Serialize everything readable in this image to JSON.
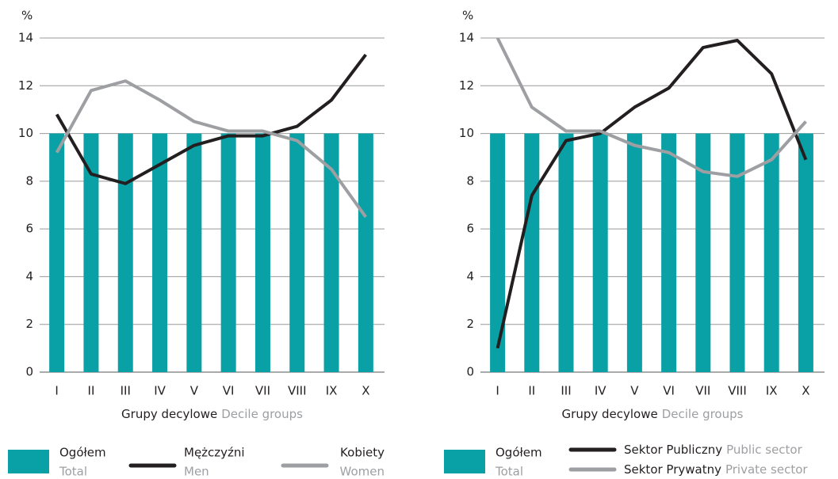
{
  "chart_data": [
    {
      "type": "combo",
      "y_unit": "%",
      "xlabel": "Grupy decylowe",
      "xlabel_en": "Decile groups",
      "categories": [
        "I",
        "II",
        "III",
        "IV",
        "V",
        "VI",
        "VII",
        "VIII",
        "IX",
        "X"
      ],
      "ylim": [
        0,
        14
      ],
      "yticks": [
        0,
        2,
        4,
        6,
        8,
        10,
        12,
        14
      ],
      "grid": true,
      "series": [
        {
          "name": "Ogółem",
          "name_en": "Total",
          "kind": "bar",
          "color": "#0aa1a6",
          "values": [
            10,
            10,
            10,
            10,
            10,
            10,
            10,
            10,
            10,
            10
          ]
        },
        {
          "name": "Mężczyźni",
          "name_en": "Men",
          "kind": "line",
          "color": "#231f20",
          "values": [
            10.8,
            8.3,
            7.9,
            8.7,
            9.5,
            9.9,
            9.9,
            10.3,
            11.4,
            13.3
          ]
        },
        {
          "name": "Kobiety",
          "name_en": "Women",
          "kind": "line",
          "color": "#9d9fa2",
          "values": [
            9.2,
            11.8,
            12.2,
            11.4,
            10.5,
            10.1,
            10.1,
            9.7,
            8.5,
            6.5
          ]
        }
      ]
    },
    {
      "type": "combo",
      "y_unit": "%",
      "xlabel": "Grupy decylowe",
      "xlabel_en": "Decile groups",
      "categories": [
        "I",
        "II",
        "III",
        "IV",
        "V",
        "VI",
        "VII",
        "VIII",
        "IX",
        "X"
      ],
      "ylim": [
        0,
        14
      ],
      "yticks": [
        0,
        2,
        4,
        6,
        8,
        10,
        12,
        14
      ],
      "grid": true,
      "series": [
        {
          "name": "Ogółem",
          "name_en": "Total",
          "kind": "bar",
          "color": "#0aa1a6",
          "values": [
            10,
            10,
            10,
            10,
            10,
            10,
            10,
            10,
            10,
            10
          ]
        },
        {
          "name": "Sektor Publiczny",
          "name_en": "Public sector",
          "kind": "line",
          "color": "#231f20",
          "values": [
            1.0,
            7.4,
            9.7,
            10.0,
            11.1,
            11.9,
            13.6,
            13.9,
            12.5,
            8.9
          ]
        },
        {
          "name": "Sektor Prywatny",
          "name_en": "Private sector",
          "kind": "line",
          "color": "#9d9fa2",
          "values": [
            14.0,
            11.1,
            10.1,
            10.1,
            9.5,
            9.2,
            8.4,
            8.2,
            8.9,
            10.5
          ]
        }
      ]
    }
  ]
}
